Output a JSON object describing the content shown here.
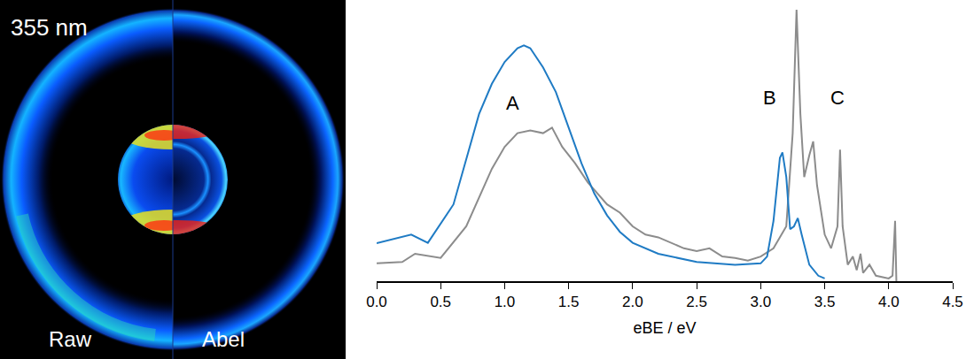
{
  "image_panel": {
    "wavelength_label": "355 nm",
    "left_label": "Raw",
    "right_label": "Abel"
  },
  "chart_data": {
    "type": "line",
    "xlabel": "eBE / eV",
    "xlim": [
      0,
      4.5
    ],
    "xticks": [
      {
        "value": 0,
        "label": "0.0"
      },
      0.5,
      {
        "value": 1,
        "label": "1.0"
      },
      1.5,
      {
        "value": 2,
        "label": "2.0"
      },
      2.5,
      {
        "value": 3,
        "label": "3.0"
      },
      3.5,
      {
        "value": 4,
        "label": "4.0"
      },
      4.5
    ],
    "ylim": [
      0,
      1
    ],
    "tick_labels": "x",
    "grid": false,
    "annotations": [
      {
        "text": "A",
        "x": 1.06,
        "y": 0.65
      },
      {
        "text": "B",
        "x": 3.07,
        "y": 0.67
      },
      {
        "text": "C",
        "x": 3.6,
        "y": 0.67
      }
    ],
    "series": [
      {
        "color": "#8c8c8c",
        "x": [
          0,
          0.2,
          0.3,
          0.5,
          0.7,
          0.9,
          1.0,
          1.1,
          1.2,
          1.3,
          1.37,
          1.45,
          1.55,
          1.65,
          1.8,
          1.9,
          2.0,
          2.1,
          2.2,
          2.3,
          2.4,
          2.5,
          2.6,
          2.7,
          2.8,
          2.9,
          3.0,
          3.1,
          3.2,
          3.25,
          3.28,
          3.31,
          3.34,
          3.38,
          3.41,
          3.44,
          3.5,
          3.55,
          3.6,
          3.62,
          3.64,
          3.68,
          3.72,
          3.75,
          3.78,
          3.8,
          3.85,
          3.9,
          4.0,
          4.03,
          4.05,
          4.06
        ],
        "values": [
          0.065,
          0.07,
          0.1,
          0.085,
          0.2,
          0.41,
          0.49,
          0.54,
          0.55,
          0.54,
          0.56,
          0.49,
          0.43,
          0.36,
          0.28,
          0.25,
          0.2,
          0.17,
          0.16,
          0.14,
          0.12,
          0.11,
          0.12,
          0.09,
          0.085,
          0.075,
          0.09,
          0.12,
          0.2,
          0.54,
          0.99,
          0.61,
          0.38,
          0.46,
          0.51,
          0.35,
          0.17,
          0.12,
          0.2,
          0.48,
          0.2,
          0.06,
          0.09,
          0.04,
          0.1,
          0.03,
          0.06,
          0.02,
          0.01,
          0.02,
          0.22,
          0
        ]
      },
      {
        "color": "#1f7bc4",
        "x": [
          0,
          0.27,
          0.4,
          0.6,
          0.8,
          0.9,
          1.0,
          1.1,
          1.15,
          1.2,
          1.3,
          1.4,
          1.5,
          1.6,
          1.7,
          1.8,
          1.9,
          2.0,
          2.2,
          2.5,
          2.8,
          3.0,
          3.05,
          3.1,
          3.15,
          3.17,
          3.2,
          3.23,
          3.26,
          3.29,
          3.32,
          3.38,
          3.45,
          3.5
        ],
        "values": [
          0.139,
          0.17,
          0.14,
          0.28,
          0.61,
          0.72,
          0.8,
          0.85,
          0.86,
          0.85,
          0.78,
          0.69,
          0.56,
          0.43,
          0.32,
          0.24,
          0.18,
          0.14,
          0.1,
          0.07,
          0.06,
          0.065,
          0.09,
          0.22,
          0.45,
          0.47,
          0.38,
          0.19,
          0.2,
          0.23,
          0.17,
          0.06,
          0.02,
          0.01
        ]
      }
    ]
  }
}
